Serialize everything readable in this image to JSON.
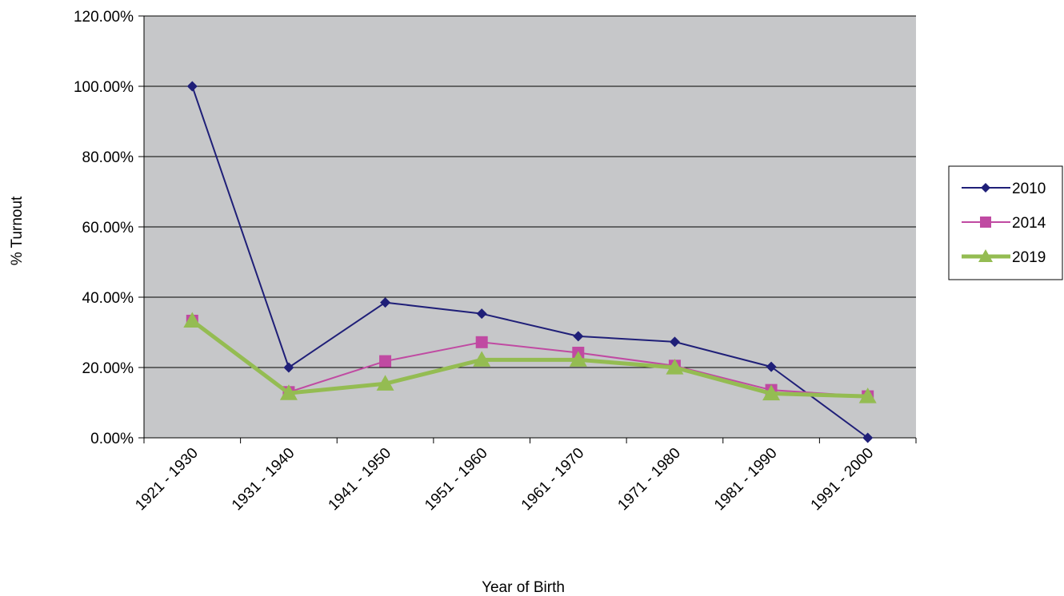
{
  "chart_data": {
    "type": "line",
    "categories": [
      "1921 - 1930",
      "1931 - 1940",
      "1941 - 1950",
      "1951 - 1960",
      "1961 - 1970",
      "1971 - 1980",
      "1981 - 1990",
      "1991 - 2000"
    ],
    "series": [
      {
        "name": "2010",
        "values": [
          100,
          20,
          38.5,
          35.3,
          28.9,
          27.3,
          20.2,
          0
        ],
        "color": "#1f1f78",
        "marker": "diamond"
      },
      {
        "name": "2014",
        "values": [
          33.3,
          13,
          21.8,
          27.2,
          24.2,
          20.5,
          13.6,
          11.8
        ],
        "color": "#c04aa2",
        "marker": "square"
      },
      {
        "name": "2019",
        "values": [
          33.3,
          12.7,
          15.4,
          22.2,
          22.2,
          20,
          12.6,
          11.8
        ],
        "color": "#94bc52",
        "marker": "triangle"
      }
    ],
    "xlabel": "Year of Birth",
    "ylabel": "% Turnout",
    "ylim": [
      0,
      120
    ],
    "yticks": [
      "0.00%",
      "20.00%",
      "40.00%",
      "60.00%",
      "80.00%",
      "100.00%",
      "120.00%"
    ],
    "grid": true,
    "plot_background": "#c6c7c9",
    "legend_position": "right"
  }
}
